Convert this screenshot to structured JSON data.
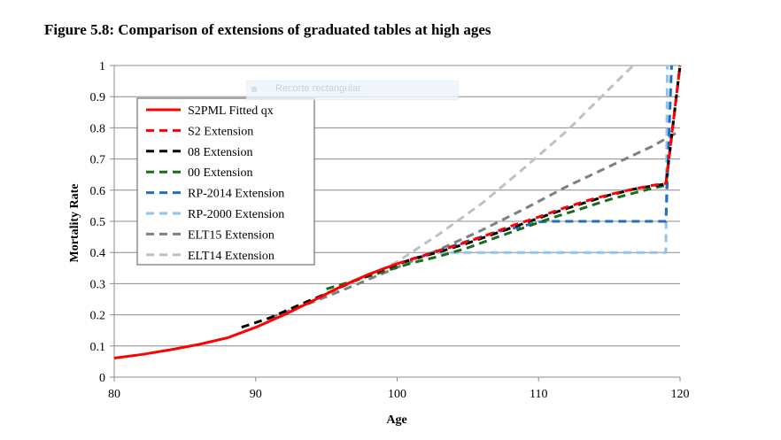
{
  "figure_title": "Figure 5.8: Comparison of extensions of graduated tables at high ages",
  "overlay": {
    "tooltip_text": "Recorte rectangular"
  },
  "chart_data": {
    "type": "line",
    "title": "Figure 5.8: Comparison of extensions of graduated tables at high ages",
    "xlabel": "Age",
    "ylabel": "Mortality Rate",
    "xlim": [
      80,
      120
    ],
    "ylim": [
      0,
      1
    ],
    "xticks": [
      80,
      90,
      100,
      110,
      120
    ],
    "yticks": [
      0,
      0.1,
      0.2,
      0.3,
      0.4,
      0.5,
      0.6,
      0.7,
      0.8,
      0.9,
      1
    ],
    "grid": "horizontal",
    "legend_position": "top-left",
    "series": [
      {
        "name": "S2PML Fitted qx",
        "color": "#ff0000",
        "dash": "solid",
        "points": [
          [
            80,
            0.061
          ],
          [
            82,
            0.073
          ],
          [
            84,
            0.088
          ],
          [
            86,
            0.105
          ],
          [
            88,
            0.126
          ],
          [
            90,
            0.16
          ],
          [
            92,
            0.2
          ],
          [
            94,
            0.244
          ],
          [
            96,
            0.29
          ],
          [
            98,
            0.33
          ],
          [
            100,
            0.364
          ]
        ]
      },
      {
        "name": "S2 Extension",
        "color": "#ff0000",
        "dash": "dashed",
        "points": [
          [
            100,
            0.364
          ],
          [
            102,
            0.392
          ],
          [
            104,
            0.42
          ],
          [
            106,
            0.45
          ],
          [
            108,
            0.484
          ],
          [
            110,
            0.514
          ],
          [
            112,
            0.546
          ],
          [
            114,
            0.574
          ],
          [
            116,
            0.597
          ],
          [
            118,
            0.615
          ],
          [
            119,
            0.622
          ],
          [
            120,
            1.0
          ]
        ]
      },
      {
        "name": "08 Extension",
        "color": "#000000",
        "dash": "dashed",
        "points": [
          [
            89,
            0.16
          ],
          [
            91,
            0.19
          ],
          [
            93,
            0.23
          ],
          [
            95,
            0.268
          ],
          [
            97,
            0.31
          ],
          [
            99,
            0.345
          ],
          [
            101,
            0.378
          ],
          [
            103,
            0.402
          ],
          [
            105,
            0.43
          ],
          [
            107,
            0.462
          ],
          [
            109,
            0.494
          ],
          [
            111,
            0.526
          ],
          [
            113,
            0.556
          ],
          [
            115,
            0.584
          ],
          [
            117,
            0.606
          ],
          [
            119,
            0.62
          ],
          [
            120,
            1.0
          ]
        ]
      },
      {
        "name": "00 Extension",
        "color": "#1a6b1a",
        "dash": "dashed",
        "points": [
          [
            95,
            0.283
          ],
          [
            97,
            0.31
          ],
          [
            99,
            0.338
          ],
          [
            101,
            0.366
          ],
          [
            103,
            0.388
          ],
          [
            105,
            0.415
          ],
          [
            107,
            0.448
          ],
          [
            109,
            0.48
          ],
          [
            111,
            0.512
          ],
          [
            113,
            0.54
          ],
          [
            115,
            0.57
          ],
          [
            117,
            0.594
          ],
          [
            119,
            0.616
          ],
          [
            120,
            1.0
          ]
        ]
      },
      {
        "name": "RP-2014 Extension",
        "color": "#1f6fc4",
        "dash": "dashed",
        "points": [
          [
            101,
            0.378
          ],
          [
            103,
            0.407
          ],
          [
            105,
            0.437
          ],
          [
            107,
            0.465
          ],
          [
            109,
            0.486
          ],
          [
            110,
            0.498
          ],
          [
            111,
            0.5
          ],
          [
            119,
            0.5
          ],
          [
            119.4,
            1.0
          ]
        ]
      },
      {
        "name": "RP-2000 Extension",
        "color": "#8fc4ee",
        "dash": "dashed",
        "points": [
          [
            101,
            0.38
          ],
          [
            103,
            0.4
          ],
          [
            104,
            0.4
          ],
          [
            119,
            0.4
          ],
          [
            119.1,
            1.0
          ]
        ]
      },
      {
        "name": "ELT15 Extension",
        "color": "#7f7f7f",
        "dash": "dashed",
        "points": [
          [
            91,
            0.19
          ],
          [
            94,
            0.24
          ],
          [
            97,
            0.295
          ],
          [
            100,
            0.352
          ],
          [
            103,
            0.41
          ],
          [
            106,
            0.472
          ],
          [
            109,
            0.54
          ],
          [
            112,
            0.612
          ],
          [
            115,
            0.676
          ],
          [
            118,
            0.74
          ],
          [
            120,
            0.79
          ]
        ]
      },
      {
        "name": "ELT14 Extension",
        "color": "#c0c0c0",
        "dash": "dashed",
        "points": [
          [
            91,
            0.185
          ],
          [
            94,
            0.245
          ],
          [
            97,
            0.307
          ],
          [
            100,
            0.37
          ],
          [
            103,
            0.46
          ],
          [
            106,
            0.558
          ],
          [
            109,
            0.672
          ],
          [
            112,
            0.79
          ],
          [
            114,
            0.88
          ],
          [
            116,
            0.97
          ],
          [
            116.7,
            1.0
          ]
        ]
      }
    ]
  }
}
